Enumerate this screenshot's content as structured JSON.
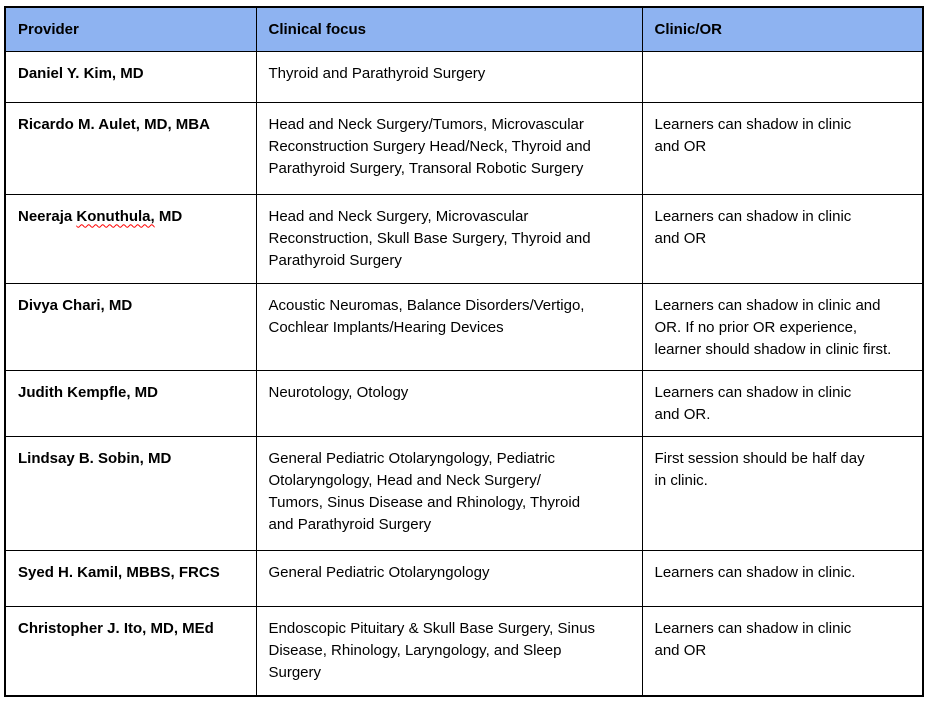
{
  "theme": {
    "header_bg": "#8eb3f1",
    "border_color": "#000000",
    "spellcheck_underline_color": "#ff0000"
  },
  "table": {
    "columns": [
      {
        "label": "Provider"
      },
      {
        "label": "Clinical focus"
      },
      {
        "label": "Clinic/OR"
      }
    ],
    "rows": [
      {
        "provider": "Daniel Y. Kim, MD",
        "clinical_focus": "Thyroid and Parathyroid Surgery",
        "clinic_or": ""
      },
      {
        "provider": "Ricardo M. Aulet, MD, MBA",
        "clinical_focus": "Head and Neck Surgery/Tumors, Microvascular\nReconstruction Surgery Head/Neck, Thyroid and\nParathyroid Surgery, Transoral Robotic Surgery",
        "clinic_or": "Learners can shadow in clinic\nand OR"
      },
      {
        "provider_prefix": "Neeraja ",
        "provider_misspelled": "Konuthula,",
        "provider_suffix": " MD",
        "clinical_focus": "Head and Neck Surgery, Microvascular\nReconstruction, Skull Base Surgery, Thyroid and\nParathyroid Surgery",
        "clinic_or": "Learners can shadow in clinic\nand OR"
      },
      {
        "provider": "Divya Chari, MD",
        "clinical_focus": "Acoustic Neuromas, Balance Disorders/Vertigo,\nCochlear Implants/Hearing Devices",
        "clinic_or": "Learners can shadow in clinic and\nOR. If no prior OR experience,\nlearner should shadow in clinic first."
      },
      {
        "provider": "Judith Kempfle, MD",
        "clinical_focus": "Neurotology, Otology",
        "clinic_or": "Learners can shadow in clinic\nand OR."
      },
      {
        "provider": "Lindsay B. Sobin, MD",
        "clinical_focus": "General Pediatric Otolaryngology, Pediatric\nOtolaryngology, Head and Neck Surgery/\nTumors, Sinus Disease and Rhinology, Thyroid\nand Parathyroid Surgery",
        "clinic_or": "First session should be half day\nin clinic."
      },
      {
        "provider": "Syed H. Kamil, MBBS, FRCS",
        "clinical_focus": "General Pediatric Otolaryngology",
        "clinic_or": "Learners can shadow in clinic."
      },
      {
        "provider": "Christopher J. Ito, MD, MEd",
        "clinical_focus": "Endoscopic Pituitary & Skull Base Surgery, Sinus\nDisease, Rhinology, Laryngology, and Sleep\nSurgery",
        "clinic_or": "Learners can shadow in clinic\nand OR"
      }
    ]
  }
}
